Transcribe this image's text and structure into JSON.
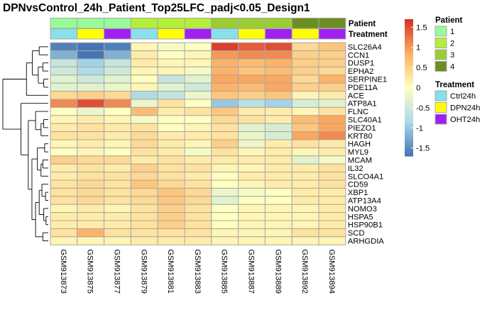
{
  "chart_data": {
    "type": "heatmap",
    "title": "DPNvsControl_24h_Patient_Top25LFC_padj<0.05_Design1",
    "columns": [
      "GSM913873",
      "GSM913875",
      "GSM913877",
      "GSM913879",
      "GSM913881",
      "GSM913883",
      "GSM913885",
      "GSM913887",
      "GSM913889",
      "GSM913892",
      "GSM913894"
    ],
    "rows": [
      "SLC26A4",
      "CCN1",
      "DUSP1",
      "EPHA2",
      "SERPINE1",
      "PDE11A",
      "ACE",
      "ATP8A1",
      "FLNC",
      "SLC40A1",
      "PIEZO1",
      "KRT80",
      "HAGH",
      "MYL9",
      "MCAM",
      "IL32",
      "SLCO4A1",
      "CD59",
      "XBP1",
      "ATP13A4",
      "NOMO3",
      "HSPA5",
      "HSP90B1",
      "SCD",
      "ARHGDIA"
    ],
    "values": [
      [
        -1.6,
        -1.7,
        -1.6,
        0.1,
        -0.1,
        0.0,
        1.6,
        1.4,
        1.5,
        0.4,
        0.6
      ],
      [
        -1.2,
        -1.7,
        -1.2,
        0.2,
        0.0,
        0.1,
        1.0,
        1.1,
        1.1,
        0.5,
        0.5
      ],
      [
        -0.6,
        -0.9,
        -0.6,
        0.2,
        0.1,
        0.1,
        0.8,
        0.7,
        0.8,
        0.5,
        0.5
      ],
      [
        -0.5,
        -0.8,
        -0.5,
        0.1,
        0.1,
        -0.1,
        0.8,
        0.6,
        0.7,
        0.5,
        0.4
      ],
      [
        -0.3,
        -0.5,
        -0.3,
        0.0,
        -0.6,
        -0.3,
        0.9,
        0.9,
        0.9,
        0.4,
        0.8
      ],
      [
        -0.3,
        -0.3,
        -0.2,
        0.1,
        -0.3,
        -0.5,
        0.8,
        0.7,
        0.9,
        0.5,
        0.5
      ],
      [
        0.4,
        0.5,
        0.4,
        -0.8,
        -0.6,
        -0.2,
        0.6,
        0.5,
        0.6,
        0.1,
        0.2
      ],
      [
        1.1,
        1.5,
        1.1,
        -0.2,
        0.3,
        0.0,
        -1.0,
        -0.7,
        -0.9,
        -0.4,
        -0.3
      ],
      [
        0.0,
        -0.2,
        0.0,
        0.7,
        0.2,
        0.3,
        0.6,
        0.2,
        0.2,
        0.1,
        0.3
      ],
      [
        0.1,
        0.2,
        0.1,
        -0.1,
        0.0,
        0.0,
        0.4,
        0.3,
        0.2,
        0.7,
        0.9
      ],
      [
        0.2,
        0.3,
        0.2,
        0.3,
        0.0,
        0.1,
        0.3,
        -0.3,
        -0.4,
        0.6,
        0.9
      ],
      [
        0.3,
        0.3,
        0.2,
        0.4,
        0.2,
        0.2,
        0.3,
        -0.2,
        -0.4,
        0.9,
        1.1
      ],
      [
        0.1,
        0.2,
        0.1,
        0.4,
        0.2,
        0.1,
        0.5,
        -0.2,
        0.2,
        0.3,
        0.2
      ],
      [
        0.0,
        0.1,
        0.0,
        0.3,
        0.2,
        -0.1,
        0.3,
        0.1,
        0.2,
        0.1,
        0.2
      ],
      [
        0.5,
        0.4,
        0.4,
        0.2,
        0.3,
        0.2,
        0.2,
        0.2,
        0.2,
        -0.3,
        -0.1
      ],
      [
        0.2,
        0.3,
        0.2,
        0.5,
        0.3,
        0.3,
        0.1,
        0.1,
        0.2,
        0.2,
        0.3
      ],
      [
        0.2,
        0.3,
        0.3,
        0.4,
        0.3,
        0.2,
        0.0,
        0.2,
        0.2,
        0.2,
        0.3
      ],
      [
        0.3,
        0.4,
        0.3,
        0.6,
        0.4,
        0.3,
        0.0,
        0.1,
        0.2,
        0.2,
        0.3
      ],
      [
        0.3,
        0.4,
        0.3,
        0.4,
        0.6,
        0.4,
        -0.2,
        -0.1,
        0.0,
        0.2,
        0.2
      ],
      [
        0.3,
        0.4,
        0.3,
        0.4,
        0.6,
        0.4,
        -0.3,
        0.0,
        0.0,
        0.2,
        0.2
      ],
      [
        0.1,
        0.2,
        0.1,
        0.3,
        0.5,
        0.3,
        0.0,
        0.1,
        0.1,
        0.1,
        0.2
      ],
      [
        0.2,
        0.2,
        0.2,
        0.3,
        0.5,
        0.3,
        0.0,
        0.1,
        0.1,
        0.1,
        0.2
      ],
      [
        0.2,
        0.2,
        0.2,
        0.3,
        0.5,
        0.3,
        0.0,
        0.1,
        0.1,
        0.1,
        0.2
      ],
      [
        0.3,
        0.8,
        0.3,
        0.3,
        0.3,
        0.3,
        0.1,
        0.1,
        0.1,
        0.3,
        0.3
      ],
      [
        0.1,
        0.1,
        0.1,
        0.2,
        0.2,
        0.2,
        0.1,
        0.1,
        0.1,
        0.1,
        0.1
      ]
    ],
    "color_scale": {
      "stops": [
        {
          "value": -1.7,
          "color": "#4575b4"
        },
        {
          "value": -0.85,
          "color": "#abd9e9"
        },
        {
          "value": 0.0,
          "color": "#ffffbf"
        },
        {
          "value": 0.85,
          "color": "#fdae61"
        },
        {
          "value": 1.7,
          "color": "#d73027"
        }
      ],
      "ticks": [
        1.5,
        1,
        0.5,
        0,
        -0.5,
        -1,
        -1.5
      ]
    },
    "annotations": {
      "Patient": {
        "label": "Patient",
        "values": [
          "1",
          "1",
          "1",
          "2",
          "2",
          "2",
          "3",
          "3",
          "3",
          "4",
          "4"
        ],
        "legend": [
          {
            "label": "1",
            "color": "#98fb98"
          },
          {
            "label": "2",
            "color": "#b3ee3a"
          },
          {
            "label": "3",
            "color": "#9acd32"
          },
          {
            "label": "4",
            "color": "#6b8e23"
          }
        ]
      },
      "Treatment": {
        "label": "Treatment",
        "values": [
          "Ctrl24h",
          "DPN24h",
          "OHT24h",
          "Ctrl24h",
          "DPN24h",
          "OHT24h",
          "Ctrl24h",
          "DPN24h",
          "OHT24h",
          "DPN24h",
          "OHT24h"
        ],
        "legend": [
          {
            "label": "Ctrl24h",
            "color": "#87e0ea"
          },
          {
            "label": "DPN24h",
            "color": "#ffff00"
          },
          {
            "label": "OHT24h",
            "color": "#a020f0"
          }
        ]
      }
    },
    "row_dendrogram": "left"
  }
}
